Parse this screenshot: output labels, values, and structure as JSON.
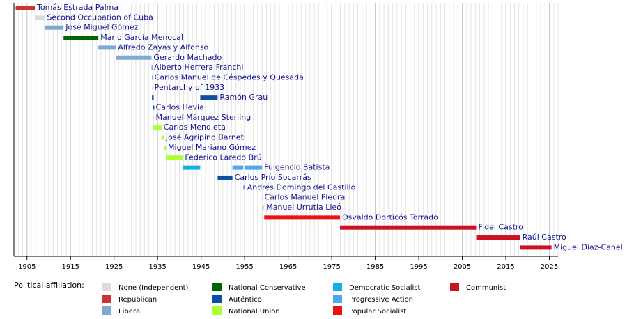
{
  "chart_data": {
    "type": "timeline",
    "xlim": [
      1902,
      2027
    ],
    "xticks": [
      1905,
      1915,
      1925,
      1935,
      1945,
      1955,
      1965,
      1975,
      1985,
      1995,
      2005,
      2015,
      2025
    ],
    "grid": true,
    "legend_title": "Political affiliation:",
    "parties": [
      {
        "name": "None (Independent)",
        "color": "#dcdcdc"
      },
      {
        "name": "Republican",
        "color": "#cc3333"
      },
      {
        "name": "Liberal",
        "color": "#7fa9d4"
      },
      {
        "name": "National Conservative",
        "color": "#006400"
      },
      {
        "name": "Auténtico",
        "color": "#0b4fa0"
      },
      {
        "name": "National Union",
        "color": "#adff2f"
      },
      {
        "name": "Democratic Socialist",
        "color": "#12b0e6"
      },
      {
        "name": "Progressive Action",
        "color": "#4da6ee"
      },
      {
        "name": "Popular Socialist",
        "color": "#ee1111"
      },
      {
        "name": "Communist",
        "color": "#cc1122"
      }
    ],
    "rows": [
      {
        "name": "Tomás Estrada Palma",
        "bars": [
          {
            "start": 1902.4,
            "end": 1906.8,
            "party": 1
          }
        ]
      },
      {
        "name": "Second Occupation of Cuba",
        "bars": [
          {
            "start": 1906.8,
            "end": 1909.1,
            "party": 0
          }
        ]
      },
      {
        "name": "José Miguel Gómez",
        "bars": [
          {
            "start": 1909.1,
            "end": 1913.4,
            "party": 2
          }
        ]
      },
      {
        "name": "Mario García Menocal",
        "bars": [
          {
            "start": 1913.4,
            "end": 1921.4,
            "party": 3
          }
        ]
      },
      {
        "name": "Alfredo Zayas y Alfonso",
        "bars": [
          {
            "start": 1921.4,
            "end": 1925.4,
            "party": 2
          }
        ]
      },
      {
        "name": "Gerardo Machado",
        "bars": [
          {
            "start": 1925.4,
            "end": 1933.6,
            "party": 2
          }
        ]
      },
      {
        "name": "Alberto Herrera Franchi",
        "bars": [
          {
            "start": 1933.6,
            "end": 1933.7,
            "party": 2
          }
        ]
      },
      {
        "name": "Carlos Manuel de Céspedes y Quesada",
        "bars": [
          {
            "start": 1933.7,
            "end": 1933.8,
            "party": 2
          }
        ]
      },
      {
        "name": "Pentarchy of 1933",
        "bars": [
          {
            "start": 1933.7,
            "end": 1933.8,
            "party": 0
          }
        ]
      },
      {
        "name": "Ramón Grau",
        "bars": [
          {
            "start": 1933.7,
            "end": 1934.1,
            "party": 4
          },
          {
            "start": 1944.8,
            "end": 1948.8,
            "party": 4
          }
        ]
      },
      {
        "name": "Carlos Hevia",
        "bars": [
          {
            "start": 1934.0,
            "end": 1934.1,
            "party": 4
          }
        ]
      },
      {
        "name": "Manuel Márquez Sterling",
        "bars": [
          {
            "start": 1934.0,
            "end": 1934.1,
            "party": 0
          }
        ]
      },
      {
        "name": "Carlos Mendieta",
        "bars": [
          {
            "start": 1934.1,
            "end": 1935.9,
            "party": 5
          }
        ]
      },
      {
        "name": "José Agripino Barnet",
        "bars": [
          {
            "start": 1935.9,
            "end": 1936.4,
            "party": 5
          }
        ]
      },
      {
        "name": "Miguel Mariano Gómez",
        "bars": [
          {
            "start": 1936.4,
            "end": 1936.9,
            "party": 5
          }
        ]
      },
      {
        "name": "Federico Laredo Brú",
        "bars": [
          {
            "start": 1936.9,
            "end": 1940.8,
            "party": 5
          }
        ]
      },
      {
        "name": "Fulgencio Batista",
        "bars": [
          {
            "start": 1940.8,
            "end": 1944.8,
            "party": 6
          },
          {
            "start": 1952.2,
            "end": 1954.7,
            "party": 7
          },
          {
            "start": 1955.1,
            "end": 1959.0,
            "party": 7
          }
        ]
      },
      {
        "name": "Carlos Prío Socarrás",
        "bars": [
          {
            "start": 1948.8,
            "end": 1952.2,
            "party": 4
          }
        ]
      },
      {
        "name": "Andrés Domingo del Castillo",
        "bars": [
          {
            "start": 1954.7,
            "end": 1955.1,
            "party": 7
          }
        ]
      },
      {
        "name": "Carlos Manuel Piedra",
        "bars": [
          {
            "start": 1959.0,
            "end": 1959.05,
            "party": 0
          }
        ]
      },
      {
        "name": "Manuel Urrutia Lleó",
        "bars": [
          {
            "start": 1959.0,
            "end": 1959.5,
            "party": 0
          }
        ]
      },
      {
        "name": "Osvaldo Dorticós Torrado",
        "bars": [
          {
            "start": 1959.5,
            "end": 1976.9,
            "party": 8
          }
        ]
      },
      {
        "name": "Fidel Castro",
        "bars": [
          {
            "start": 1976.9,
            "end": 2008.2,
            "party": 9
          }
        ]
      },
      {
        "name": "Raúl Castro",
        "bars": [
          {
            "start": 2008.2,
            "end": 2018.3,
            "party": 9
          }
        ]
      },
      {
        "name": "Miguel Díaz-Canel",
        "bars": [
          {
            "start": 2018.3,
            "end": 2025.5,
            "party": 9
          }
        ]
      }
    ]
  }
}
